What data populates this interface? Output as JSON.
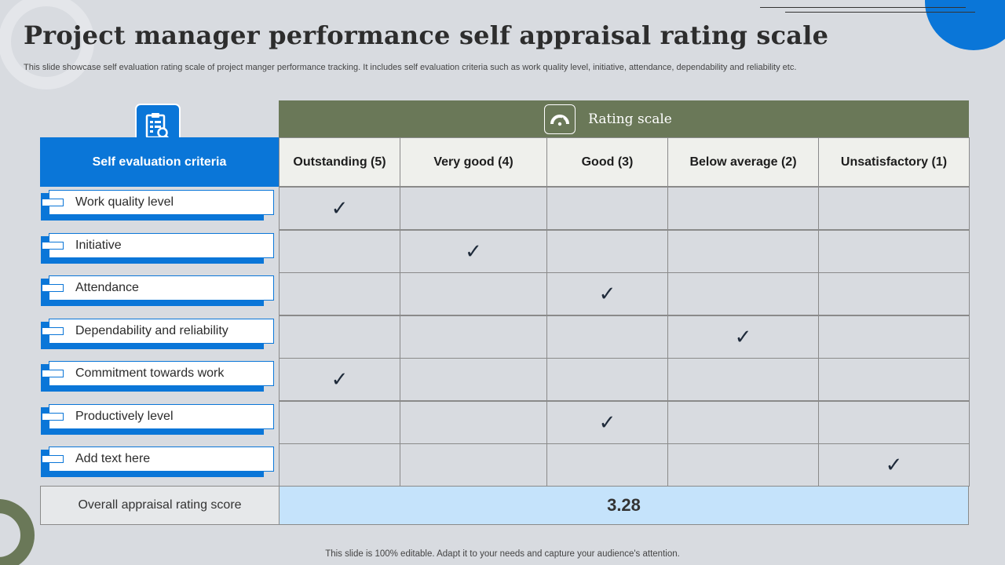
{
  "header": {
    "title": "Project manager performance self appraisal rating scale",
    "subtitle": "This slide showcase self evaluation rating scale of project manger performance tracking. It includes self evaluation criteria such as work quality level, initiative, attendance, dependability and reliability etc."
  },
  "table": {
    "criteria_header": "Self evaluation criteria",
    "rating_header": "Rating scale",
    "columns": [
      "Outstanding (5)",
      "Very good (4)",
      "Good (3)",
      "Below average (2)",
      "Unsatisfactory (1)"
    ],
    "rows": [
      {
        "label": "Work quality level",
        "rating_column": 0
      },
      {
        "label": "Initiative",
        "rating_column": 1
      },
      {
        "label": "Attendance",
        "rating_column": 2
      },
      {
        "label": "Dependability and reliability",
        "rating_column": 3
      },
      {
        "label": "Commitment towards work",
        "rating_column": 0
      },
      {
        "label": "Productively  level",
        "rating_column": 2
      },
      {
        "label": "Add text here",
        "rating_column": 4
      }
    ],
    "check_mark": "✓",
    "score_label": "Overall appraisal rating score",
    "score_value": "3.28"
  },
  "footer": {
    "note": "This slide is 100% editable. Adapt it to your needs and capture your audience's attention."
  },
  "icons": {
    "criteria": "clipboard-search-icon",
    "rating": "gauge-icon"
  },
  "colors": {
    "accent_blue": "#0a76d8",
    "accent_green": "#6a7858",
    "score_fill": "#c5e3fb",
    "background": "#d8dbe0"
  }
}
